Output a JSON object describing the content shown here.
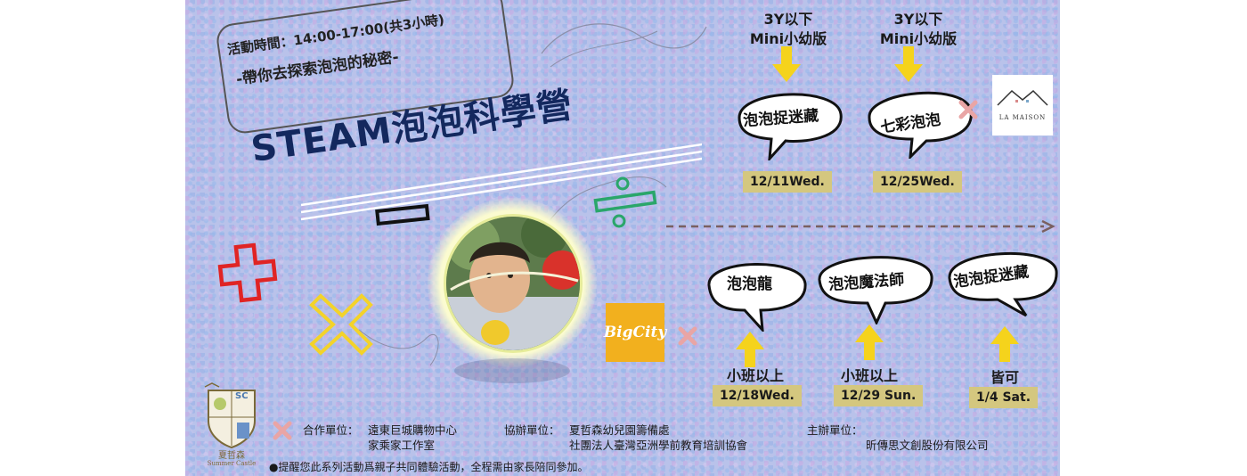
{
  "time": {
    "line1": "活動時間：14:00-17:00(共3小時)",
    "line2": "-帶你去探索泡泡的秘密-"
  },
  "title": "STEAM泡泡科學營",
  "top_sessions": [
    {
      "age": "3Y以下",
      "level": "Mini小幼版",
      "name": "泡泡捉迷藏",
      "date": "12/11Wed."
    },
    {
      "age": "3Y以下",
      "level": "Mini小幼版",
      "name": "七彩泡泡",
      "date": "12/25Wed."
    }
  ],
  "bottom_sessions": [
    {
      "name": "泡泡龍",
      "age": "小班以上",
      "date": "12/18Wed."
    },
    {
      "name": "泡泡魔法師",
      "age": "小班以上",
      "date": "12/29 Sun."
    },
    {
      "name": "泡泡捉迷藏",
      "age": "皆可",
      "date": "1/4 Sat."
    }
  ],
  "logos": {
    "la_maison": "LA MAISON",
    "big_city": "BigCity",
    "summer_castle_cn": "夏哲森",
    "summer_castle_en": "Summer Castle",
    "sc": "SC"
  },
  "footer": {
    "cooperate_label": "合作單位：",
    "cooperate_1": "遠東巨城購物中心",
    "cooperate_2": "家乘家工作室",
    "co_org_label": "協辦單位：",
    "co_org_1": "夏哲森幼兒園籌備處",
    "co_org_2": "社團法人臺灣亞洲學前教育培訓協會",
    "host_label": "主辦單位：",
    "host_1": "昕傳思文創股份有限公司",
    "note": "●提醒您此系列活動爲親子共同體驗活動，全程需由家長陪同參加。"
  },
  "colors": {
    "background": "#b9c2ea",
    "title": "#13285e",
    "arrow": "#f5d31c",
    "date_tag": "#d4c77f",
    "plus_red": "#e02424",
    "cross_yellow": "#f3d32a",
    "cross_pink": "#e9a5a5",
    "big_city": "#f2b01e"
  }
}
